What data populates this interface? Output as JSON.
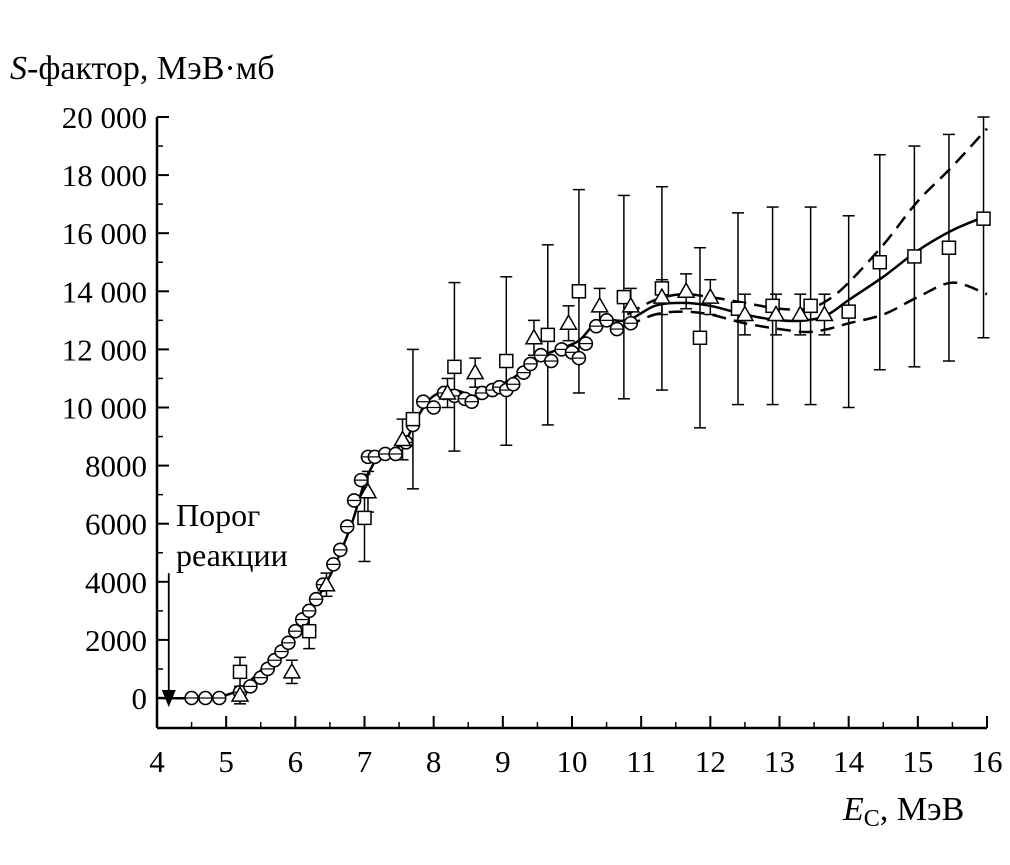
{
  "chart_data": {
    "type": "scatter",
    "ylabel_prefix": "S",
    "ylabel_rest": "-фактор, МэВ·мб",
    "xlabel_prefix": "E",
    "xlabel_sub": "C",
    "xlabel_rest": ", МэВ",
    "xlim": [
      4,
      16
    ],
    "ylim": [
      -1000,
      20000
    ],
    "xticks": [
      4,
      5,
      6,
      7,
      8,
      9,
      10,
      11,
      12,
      13,
      14,
      15,
      16
    ],
    "yticks": [
      0,
      2000,
      4000,
      6000,
      8000,
      10000,
      12000,
      14000,
      16000,
      18000,
      20000
    ],
    "ytick_labels": [
      "0",
      "2000",
      "4000",
      "6000",
      "8000",
      "10 000",
      "12 000",
      "14 000",
      "16 000",
      "18 000",
      "20 000"
    ],
    "annotation": {
      "line1": "Порог",
      "line2": "реакции",
      "threshold_x": 4.17,
      "threshold_y": 0,
      "arrow_top_y": 4300
    },
    "fit": {
      "x": [
        4.0,
        4.5,
        5.0,
        5.3,
        5.6,
        5.9,
        6.2,
        6.5,
        6.8,
        7.0,
        7.2,
        7.4,
        7.6,
        7.8,
        8.0,
        8.3,
        8.6,
        8.9,
        9.2,
        9.5,
        9.8,
        10.1,
        10.4,
        10.8,
        11.2,
        11.6,
        12.0,
        12.5,
        13.0,
        13.4,
        13.7,
        14.0,
        14.5,
        15.0,
        15.5,
        16.0
      ],
      "y": [
        0,
        0,
        100,
        500,
        1200,
        2000,
        3000,
        4200,
        5900,
        7400,
        8300,
        8500,
        8900,
        9800,
        10400,
        10600,
        10400,
        10700,
        11100,
        11700,
        12000,
        12300,
        13000,
        13000,
        13500,
        13600,
        13500,
        13200,
        13000,
        13000,
        13200,
        13700,
        14500,
        15400,
        16100,
        16600
      ]
    },
    "fit_upper": {
      "x": [
        10.8,
        11.2,
        11.6,
        12.0,
        12.5,
        13.0,
        13.4,
        13.7,
        14.0,
        14.5,
        15.0,
        15.5,
        16.0
      ],
      "y": [
        13200,
        13700,
        13900,
        13800,
        13600,
        13400,
        13400,
        13700,
        14300,
        15600,
        17100,
        18300,
        19600
      ]
    },
    "fit_lower": {
      "x": [
        10.8,
        11.2,
        11.6,
        12.0,
        12.5,
        13.0,
        13.4,
        13.7,
        14.0,
        14.5,
        15.0,
        15.5,
        16.0
      ],
      "y": [
        12800,
        13200,
        13300,
        13200,
        12900,
        12700,
        12600,
        12700,
        12900,
        13200,
        13800,
        14300,
        13900
      ]
    },
    "series": [
      {
        "name": "circles",
        "marker": "circle",
        "x": [
          4.5,
          4.7,
          4.9,
          5.2,
          5.35,
          5.5,
          5.6,
          5.7,
          5.8,
          5.9,
          6.0,
          6.1,
          6.2,
          6.3,
          6.4,
          6.55,
          6.65,
          6.75,
          6.85,
          6.95,
          7.05,
          7.15,
          7.3,
          7.45,
          7.6,
          7.7,
          7.85,
          8.0,
          8.15,
          8.3,
          8.45,
          8.55,
          8.7,
          8.85,
          8.95,
          9.05,
          9.15,
          9.3,
          9.4,
          9.55,
          9.7,
          9.85,
          10.0,
          10.1,
          10.2,
          10.35,
          10.5,
          10.65,
          10.85
        ],
        "y": [
          0,
          0,
          0,
          200,
          400,
          700,
          1000,
          1300,
          1600,
          1900,
          2300,
          2700,
          3000,
          3400,
          3900,
          4600,
          5100,
          5900,
          6800,
          7500,
          8300,
          8300,
          8400,
          8400,
          8800,
          9400,
          10200,
          10000,
          10500,
          10400,
          10300,
          10200,
          10500,
          10600,
          10700,
          10600,
          10800,
          11200,
          11500,
          11800,
          11600,
          12000,
          11900,
          11700,
          12200,
          12800,
          13000,
          12700,
          12900
        ]
      },
      {
        "name": "squares",
        "marker": "square",
        "x": [
          5.2,
          6.2,
          7.0,
          7.7,
          8.3,
          9.05,
          9.65,
          10.1,
          10.75,
          11.3,
          11.85,
          12.4,
          12.9,
          13.45,
          14.0,
          14.45,
          14.95,
          15.45,
          15.95
        ],
        "y": [
          900,
          2300,
          6200,
          9600,
          11400,
          11600,
          12500,
          14000,
          13800,
          14100,
          12400,
          13400,
          13500,
          13500,
          13300,
          15000,
          15200,
          15500,
          16500
        ],
        "err": [
          500,
          600,
          1500,
          2400,
          2900,
          2900,
          3100,
          3500,
          3500,
          3500,
          3100,
          3300,
          3400,
          3400,
          3300,
          3700,
          3800,
          3900,
          4100
        ]
      },
      {
        "name": "triangles",
        "marker": "triangle",
        "x": [
          5.2,
          5.95,
          6.45,
          7.05,
          7.55,
          8.2,
          8.6,
          9.45,
          9.95,
          10.4,
          10.85,
          11.3,
          11.65,
          12.0,
          12.5,
          12.95,
          13.3,
          13.65
        ],
        "y": [
          100,
          900,
          3900,
          7100,
          8900,
          10500,
          11200,
          12400,
          12900,
          13500,
          13500,
          13800,
          14000,
          13800,
          13200,
          13200,
          13200,
          13200
        ],
        "err": [
          300,
          400,
          400,
          700,
          700,
          500,
          500,
          600,
          600,
          600,
          600,
          600,
          600,
          600,
          700,
          700,
          700,
          700
        ]
      }
    ]
  }
}
